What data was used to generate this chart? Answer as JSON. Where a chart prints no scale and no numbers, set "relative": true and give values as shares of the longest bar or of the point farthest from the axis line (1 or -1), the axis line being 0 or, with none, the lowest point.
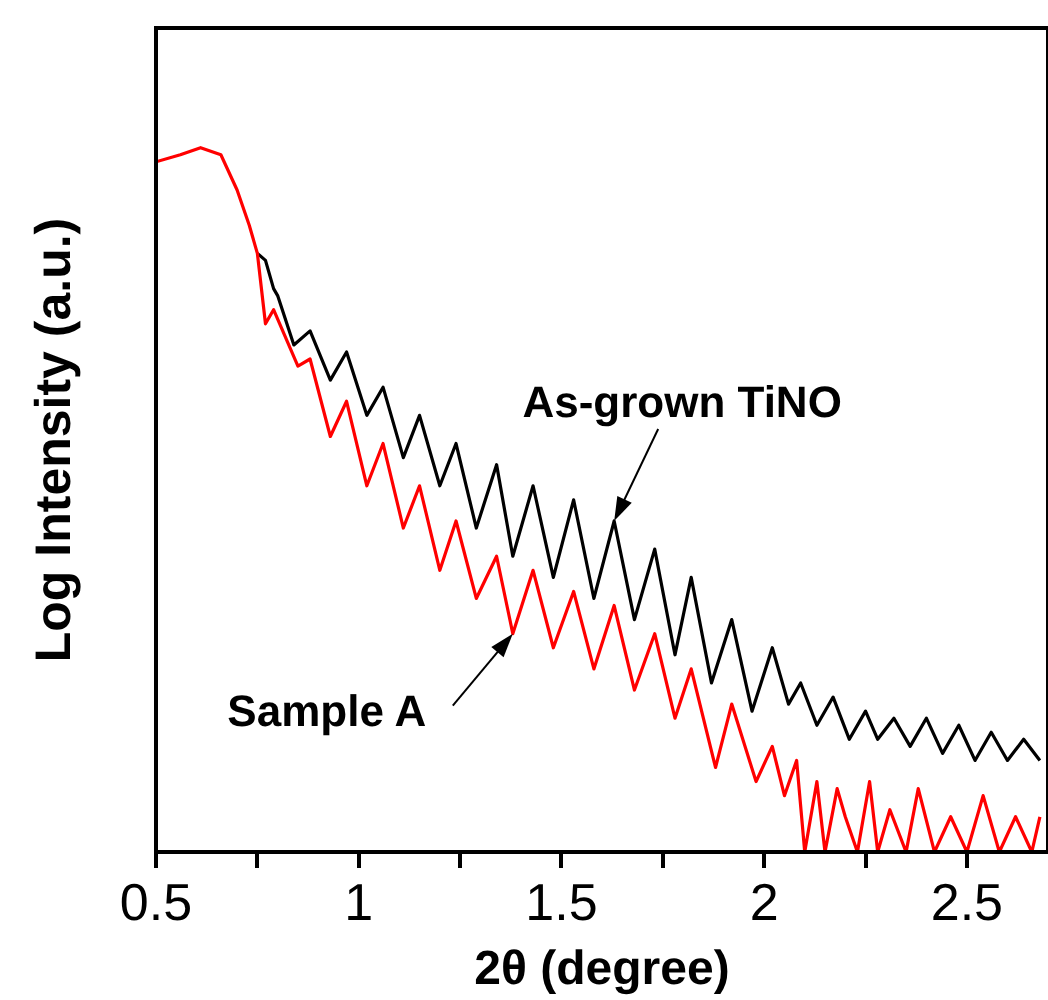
{
  "chart_data": {
    "type": "line",
    "relative": true,
    "xlabel": "2θ (degree)",
    "ylabel": "Log Intensity (a.u.)",
    "xlim": [
      0.5,
      2.7
    ],
    "xticks": [
      0.5,
      {
        "value": 0.75,
        "label": null
      },
      1.0,
      {
        "value": 1.25,
        "label": null
      },
      1.5,
      {
        "value": 1.75,
        "label": null
      },
      2.0,
      {
        "value": 2.25,
        "label": null
      },
      2.5
    ],
    "legend": false,
    "grid": false,
    "marker": "none",
    "line_style": "solid",
    "annotations": [
      {
        "text": "As-grown TiNO",
        "x": 1.63,
        "y": 0.47
      },
      {
        "text": "Sample A",
        "x": 1.38,
        "y": 0.31
      }
    ],
    "series": [
      {
        "color": "#000000",
        "x": [
          0.75,
          0.77,
          0.79,
          0.8,
          0.84,
          0.88,
          0.93,
          0.97,
          1.02,
          1.06,
          1.11,
          1.15,
          1.2,
          1.24,
          1.29,
          1.34,
          1.38,
          1.43,
          1.48,
          1.53,
          1.58,
          1.63,
          1.68,
          1.73,
          1.78,
          1.82,
          1.87,
          1.92,
          1.97,
          2.02,
          2.06,
          2.09,
          2.13,
          2.17,
          2.21,
          2.25,
          2.28,
          2.32,
          2.36,
          2.4,
          2.44,
          2.48,
          2.52,
          2.56,
          2.6,
          2.64,
          2.68
        ],
        "values": [
          0.85,
          0.84,
          0.8,
          0.79,
          0.72,
          0.74,
          0.67,
          0.71,
          0.62,
          0.66,
          0.56,
          0.62,
          0.52,
          0.58,
          0.46,
          0.55,
          0.42,
          0.52,
          0.39,
          0.5,
          0.36,
          0.47,
          0.33,
          0.43,
          0.28,
          0.39,
          0.24,
          0.33,
          0.2,
          0.29,
          0.21,
          0.24,
          0.18,
          0.22,
          0.16,
          0.2,
          0.16,
          0.19,
          0.15,
          0.19,
          0.14,
          0.18,
          0.13,
          0.17,
          0.13,
          0.16,
          0.13
        ]
      },
      {
        "color": "#ff0000",
        "x": [
          0.5,
          0.56,
          0.61,
          0.66,
          0.7,
          0.73,
          0.75,
          0.77,
          0.79,
          0.85,
          0.88,
          0.93,
          0.97,
          1.02,
          1.06,
          1.11,
          1.15,
          1.2,
          1.24,
          1.29,
          1.34,
          1.38,
          1.43,
          1.48,
          1.53,
          1.58,
          1.63,
          1.68,
          1.73,
          1.78,
          1.82,
          1.88,
          1.92,
          1.98,
          2.02,
          2.05,
          2.08,
          2.1,
          2.13,
          2.15,
          2.18,
          2.2,
          2.23,
          2.26,
          2.28,
          2.31,
          2.35,
          2.38,
          2.42,
          2.46,
          2.5,
          2.54,
          2.58,
          2.62,
          2.66,
          2.68
        ],
        "values": [
          0.98,
          0.99,
          1.0,
          0.99,
          0.94,
          0.89,
          0.85,
          0.75,
          0.77,
          0.69,
          0.7,
          0.59,
          0.64,
          0.52,
          0.58,
          0.46,
          0.52,
          0.4,
          0.47,
          0.36,
          0.42,
          0.31,
          0.4,
          0.29,
          0.37,
          0.26,
          0.35,
          0.23,
          0.31,
          0.19,
          0.26,
          0.12,
          0.21,
          0.1,
          0.15,
          0.08,
          0.13,
          0,
          0.1,
          0,
          0.09,
          0.05,
          0,
          0.1,
          0,
          0.06,
          0,
          0.09,
          0,
          0.05,
          0,
          0.08,
          0,
          0.05,
          0,
          0.05
        ]
      }
    ]
  }
}
